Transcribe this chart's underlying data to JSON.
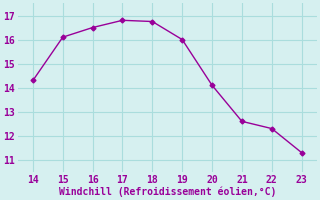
{
  "x": [
    14,
    15,
    16,
    17,
    18,
    19,
    20,
    21,
    22,
    23
  ],
  "y": [
    14.3,
    16.1,
    16.5,
    16.8,
    16.75,
    16.0,
    14.1,
    12.6,
    12.3,
    11.3
  ],
  "line_color": "#990099",
  "marker": "D",
  "marker_size": 2.5,
  "line_width": 1.0,
  "bg_color": "#d6f0f0",
  "grid_color": "#aadddd",
  "xlabel": "Windchill (Refroidissement éolien,°C)",
  "xlabel_color": "#990099",
  "xlabel_fontsize": 7,
  "tick_color": "#990099",
  "tick_fontsize": 7,
  "xlim": [
    13.5,
    23.5
  ],
  "ylim": [
    10.5,
    17.5
  ],
  "xticks": [
    14,
    15,
    16,
    17,
    18,
    19,
    20,
    21,
    22,
    23
  ],
  "yticks": [
    11,
    12,
    13,
    14,
    15,
    16,
    17
  ]
}
